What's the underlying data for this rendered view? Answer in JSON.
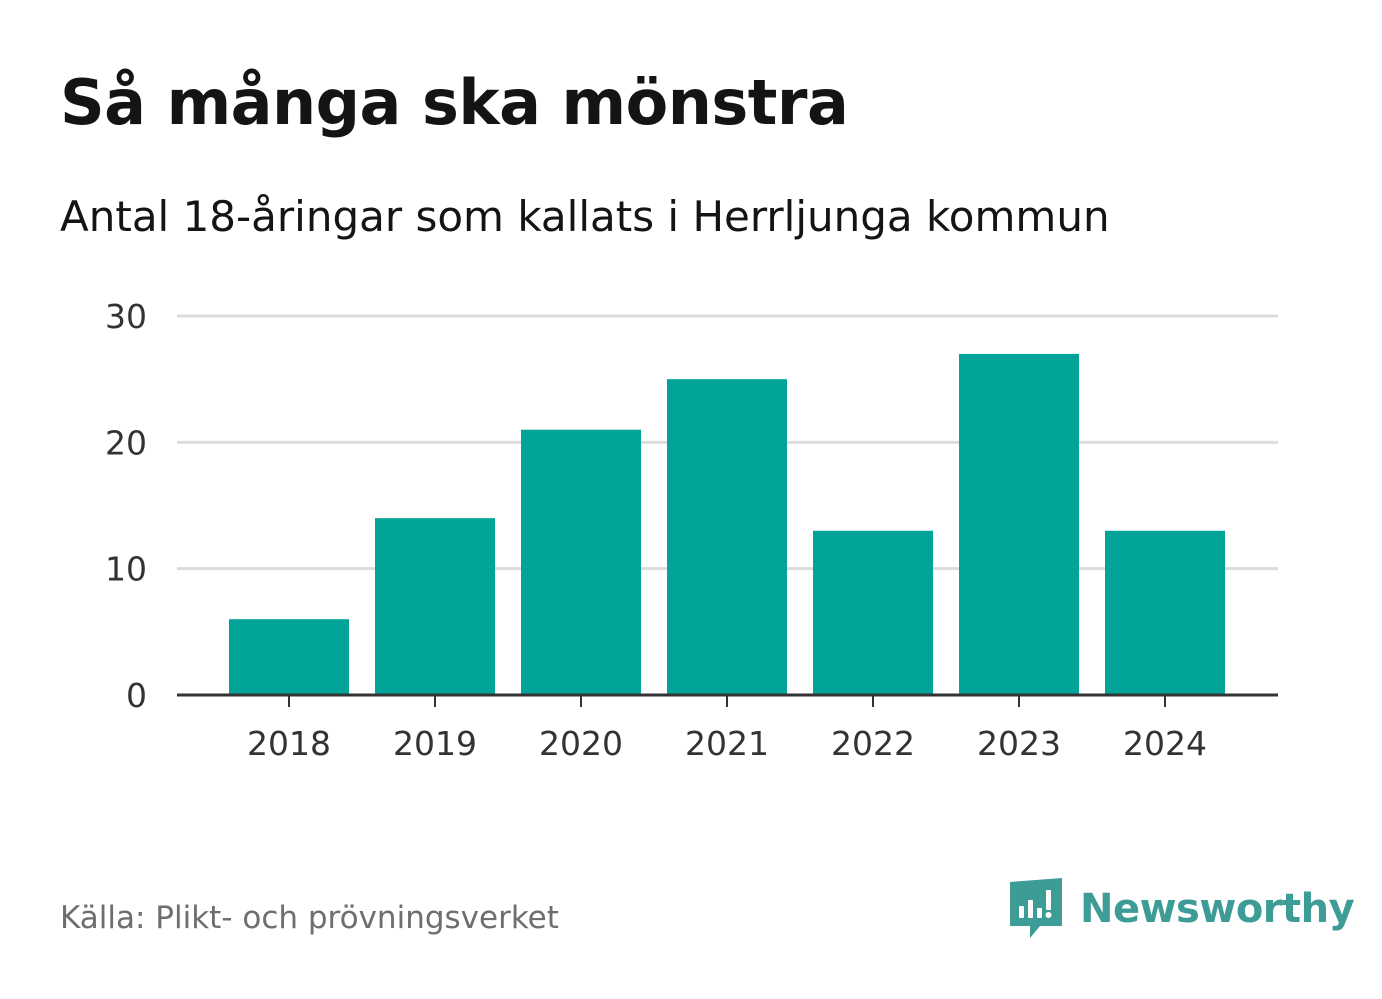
{
  "header": {
    "title": "Så många ska mönstra",
    "subtitle": "Antal 18-åringar som kallats i Herrljunga kommun"
  },
  "footer": {
    "source": "Källa: Plikt- och prövningsverket",
    "brand": "Newsworthy",
    "brand_icon": "bar-chart-speech-bubble-icon"
  },
  "colors": {
    "bar": "#02a499",
    "grid": "#dcdcdc",
    "axis": "#333333",
    "brand": "#3d9c96"
  },
  "chart_data": {
    "type": "bar",
    "title": "Så många ska mönstra",
    "subtitle": "Antal 18-åringar som kallats i Herrljunga kommun",
    "categories": [
      "2018",
      "2019",
      "2020",
      "2021",
      "2022",
      "2023",
      "2024"
    ],
    "values": [
      6,
      14,
      21,
      25,
      13,
      27,
      13
    ],
    "yticks": [
      0,
      10,
      20,
      30
    ],
    "ylim": [
      0,
      30
    ],
    "xlabel": "",
    "ylabel": "",
    "grid": true,
    "legend": "none"
  }
}
